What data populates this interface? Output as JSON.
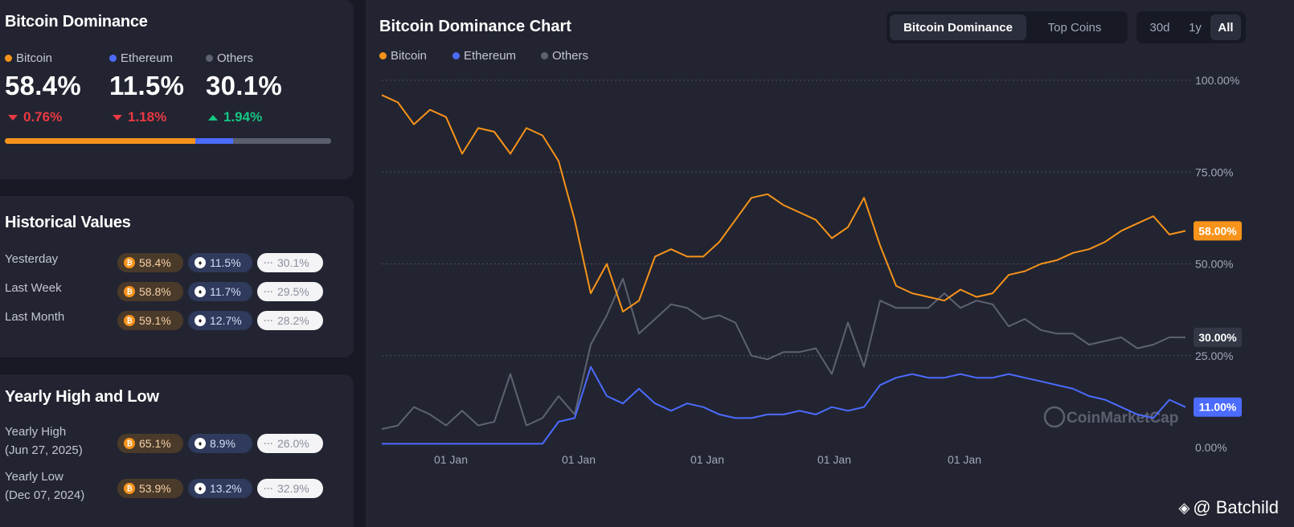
{
  "summary": {
    "title": "Bitcoin Dominance",
    "coins": [
      {
        "name": "Bitcoin",
        "value": "58.4%",
        "change": "0.76%",
        "direction": "down",
        "color": "#f7931a"
      },
      {
        "name": "Ethereum",
        "value": "11.5%",
        "change": "1.18%",
        "direction": "down",
        "color": "#4c6bff"
      },
      {
        "name": "Others",
        "value": "30.1%",
        "change": "1.94%",
        "direction": "up",
        "color": "#5d6273"
      }
    ],
    "progress": {
      "bitcoin_pct": 58.4,
      "ethereum_pct": 11.5,
      "others_pct": 30.1
    }
  },
  "historical": {
    "title": "Historical Values",
    "rows": [
      {
        "label": "Yesterday",
        "btc": "58.4%",
        "eth": "11.5%",
        "others": "30.1%"
      },
      {
        "label": "Last Week",
        "btc": "58.8%",
        "eth": "11.7%",
        "others": "29.5%"
      },
      {
        "label": "Last Month",
        "btc": "59.1%",
        "eth": "12.7%",
        "others": "28.2%"
      }
    ]
  },
  "yearly": {
    "title": "Yearly High and Low",
    "rows": [
      {
        "label": "Yearly High",
        "date": "(Jun 27, 2025)",
        "btc": "65.1%",
        "eth": "8.9%",
        "others": "26.0%"
      },
      {
        "label": "Yearly Low",
        "date": "(Dec 07, 2024)",
        "btc": "53.9%",
        "eth": "13.2%",
        "others": "32.9%"
      }
    ]
  },
  "chart": {
    "title": "Bitcoin Dominance Chart",
    "tabs": [
      "Bitcoin Dominance",
      "Top Coins"
    ],
    "active_tab": "Bitcoin Dominance",
    "ranges": [
      "30d",
      "1y",
      "All"
    ],
    "active_range": "All",
    "watermark": "CoinMarketCap",
    "badges": {
      "bitcoin": "58.00%",
      "others": "30.00%",
      "ethereum": "11.00%"
    }
  },
  "branding": {
    "text": "@ Batchild"
  },
  "chart_data": {
    "type": "line",
    "title": "Bitcoin Dominance Chart",
    "x_tick_labels": [
      "01 Jan",
      "01 Jan",
      "01 Jan",
      "01 Jan",
      "01 Jan"
    ],
    "y_tick_labels": [
      "100.00%",
      "75.00%",
      "50.00%",
      "25.00%",
      "0.00%"
    ],
    "ylim": [
      0,
      100
    ],
    "grid": true,
    "legend_position": "top-left",
    "x": [
      0,
      2,
      4,
      6,
      8,
      10,
      12,
      14,
      16,
      18,
      20,
      22,
      24,
      26,
      28,
      30,
      32,
      34,
      36,
      38,
      40,
      42,
      44,
      46,
      48,
      50,
      52,
      54,
      56,
      58,
      60,
      62,
      64,
      66,
      68,
      70,
      72,
      74,
      76,
      78,
      80,
      82,
      84,
      86,
      88,
      90,
      92,
      94,
      96,
      98,
      100
    ],
    "series": [
      {
        "name": "Bitcoin",
        "color": "#f7931a",
        "values": [
          96,
          94,
          88,
          92,
          90,
          80,
          87,
          86,
          80,
          87,
          85,
          78,
          62,
          42,
          50,
          37,
          40,
          52,
          54,
          52,
          52,
          56,
          62,
          68,
          69,
          66,
          64,
          62,
          57,
          60,
          68,
          55,
          44,
          42,
          41,
          40,
          43,
          41,
          42,
          47,
          48,
          50,
          51,
          53,
          54,
          56,
          59,
          61,
          63,
          58,
          59
        ]
      },
      {
        "name": "Ethereum",
        "color": "#4c6bff",
        "values": [
          1,
          1,
          1,
          1,
          1,
          1,
          1,
          1,
          1,
          1,
          1,
          7,
          8,
          22,
          14,
          12,
          16,
          12,
          10,
          12,
          11,
          9,
          8,
          8,
          9,
          9,
          10,
          9,
          11,
          10,
          11,
          17,
          19,
          20,
          19,
          19,
          20,
          19,
          19,
          20,
          19,
          18,
          17,
          16,
          14,
          13,
          11,
          9,
          8,
          13,
          11
        ]
      },
      {
        "name": "Others",
        "color": "#5d6273",
        "values": [
          5,
          6,
          11,
          9,
          6,
          10,
          6,
          7,
          20,
          6,
          8,
          14,
          9,
          28,
          36,
          46,
          31,
          35,
          39,
          38,
          35,
          36,
          34,
          25,
          24,
          26,
          26,
          27,
          20,
          34,
          22,
          40,
          38,
          38,
          38,
          42,
          38,
          40,
          39,
          33,
          35,
          32,
          31,
          31,
          28,
          29,
          30,
          27,
          28,
          30,
          30
        ]
      }
    ]
  }
}
